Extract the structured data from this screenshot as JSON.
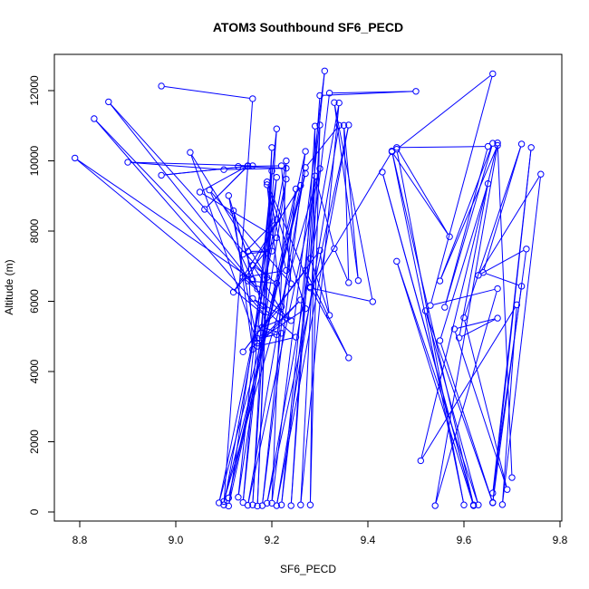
{
  "chart_data": {
    "type": "line",
    "title": "ATOM3 Southbound SF6_PECD",
    "xlabel": "SF6_PECD",
    "ylabel": "Altitude (m)",
    "xlim": [
      8.8,
      9.8
    ],
    "ylim": [
      0,
      12000
    ],
    "xticks": [
      8.8,
      9.0,
      9.2,
      9.4,
      9.6,
      9.8
    ],
    "yticks": [
      0,
      2000,
      4000,
      6000,
      8000,
      10000,
      12000
    ],
    "grid": false,
    "markers": "open-circle",
    "color": "#0000ff",
    "series": [
      {
        "name": "",
        "points": [
          [
            8.97,
            12130
          ],
          [
            9.16,
            11770
          ],
          [
            9.1,
            200
          ],
          [
            9.23,
            10000
          ],
          [
            9.2,
            250
          ],
          [
            9.31,
            12560
          ],
          [
            9.22,
            200
          ],
          [
            9.32,
            11930
          ],
          [
            9.5,
            11980
          ],
          [
            9.3,
            11860
          ],
          [
            9.24,
            180
          ],
          [
            9.29,
            10990
          ],
          [
            9.28,
            200
          ],
          [
            9.3,
            11020
          ],
          [
            9.26,
            200
          ],
          [
            9.34,
            11650
          ],
          [
            9.19,
            250
          ],
          [
            9.36,
            11020
          ],
          [
            9.21,
            180
          ],
          [
            9.34,
            11010
          ],
          [
            9.27,
            9810
          ],
          [
            9.15,
            190
          ],
          [
            9.3,
            9780
          ],
          [
            9.1,
            300
          ],
          [
            9.27,
            9640
          ],
          [
            9.09,
            260
          ],
          [
            9.23,
            9480
          ],
          [
            9.13,
            420
          ],
          [
            9.21,
            10910
          ],
          [
            9.16,
            200
          ],
          [
            9.2,
            10380
          ],
          [
            9.17,
            170
          ],
          [
            9.2,
            9710
          ],
          [
            9.14,
            270
          ],
          [
            9.21,
            9530
          ],
          [
            9.11,
            170
          ],
          [
            9.27,
            10270
          ],
          [
            9.18,
            180
          ],
          [
            9.25,
            9200
          ],
          [
            9.11,
            400
          ],
          [
            9.26,
            9300
          ],
          [
            9.12,
            6260
          ],
          [
            9.21,
            7810
          ],
          [
            9.05,
            9110
          ],
          [
            9.15,
            9860
          ],
          [
            9.06,
            8620
          ],
          [
            9.15,
            9850
          ],
          [
            8.97,
            9590
          ],
          [
            9.16,
            9860
          ],
          [
            8.9,
            9960
          ],
          [
            9.1,
            9750
          ],
          [
            9.23,
            9790
          ],
          [
            9.13,
            9840
          ],
          [
            9.22,
            9860
          ],
          [
            9.24,
            6500
          ],
          [
            9.07,
            9170
          ],
          [
            9.16,
            6610
          ],
          [
            8.79,
            10080
          ],
          [
            9.19,
            5540
          ],
          [
            8.83,
            11200
          ],
          [
            9.17,
            6350
          ],
          [
            8.86,
            11680
          ],
          [
            9.19,
            6680
          ],
          [
            9.03,
            10240
          ],
          [
            9.17,
            4810
          ],
          [
            9.11,
            9010
          ],
          [
            9.18,
            5880
          ],
          [
            9.12,
            8580
          ],
          [
            9.16,
            4630
          ],
          [
            9.15,
            7420
          ],
          [
            9.2,
            7430
          ],
          [
            9.14,
            7340
          ],
          [
            9.21,
            8330
          ],
          [
            9.15,
            6580
          ],
          [
            9.21,
            6510
          ],
          [
            9.16,
            7030
          ],
          [
            9.23,
            5530
          ],
          [
            9.17,
            5210
          ],
          [
            9.21,
            5050
          ],
          [
            9.17,
            4940
          ],
          [
            9.22,
            5090
          ],
          [
            9.18,
            5260
          ],
          [
            9.22,
            5850
          ],
          [
            9.19,
            9320
          ],
          [
            9.23,
            6880
          ],
          [
            9.14,
            6680
          ],
          [
            9.24,
            5450
          ],
          [
            9.16,
            6080
          ],
          [
            9.25,
            4980
          ],
          [
            9.17,
            4720
          ],
          [
            9.26,
            6040
          ],
          [
            9.18,
            4960
          ],
          [
            9.27,
            5790
          ],
          [
            9.19,
            9400
          ],
          [
            9.28,
            6410
          ],
          [
            9.36,
            4390
          ],
          [
            9.27,
            6880
          ],
          [
            9.14,
            4560
          ],
          [
            9.3,
            7450
          ],
          [
            9.32,
            5600
          ],
          [
            9.28,
            7220
          ],
          [
            9.29,
            9570
          ],
          [
            9.33,
            7500
          ],
          [
            9.36,
            6530
          ],
          [
            9.35,
            11010
          ],
          [
            9.38,
            6590
          ],
          [
            9.33,
            11660
          ],
          [
            9.41,
            5990
          ],
          [
            9.28,
            6380
          ],
          [
            9.45,
            10260
          ],
          [
            9.57,
            7840
          ],
          [
            9.46,
            10380
          ],
          [
            9.65,
            10410
          ],
          [
            9.56,
            5830
          ],
          [
            9.66,
            10500
          ],
          [
            9.55,
            6580
          ],
          [
            9.67,
            10440
          ],
          [
            9.54,
            180
          ],
          [
            9.67,
            6360
          ],
          [
            9.53,
            5880
          ],
          [
            9.66,
            12480
          ],
          [
            9.46,
            10330
          ],
          [
            9.6,
            200
          ],
          [
            9.45,
            10280
          ],
          [
            9.62,
            200
          ],
          [
            9.43,
            9680
          ],
          [
            9.62,
            180
          ],
          [
            9.46,
            7140
          ],
          [
            9.63,
            200
          ],
          [
            9.52,
            5730
          ],
          [
            9.66,
            260
          ],
          [
            9.55,
            4880
          ],
          [
            9.65,
            9350
          ],
          [
            9.59,
            4960
          ],
          [
            9.67,
            5520
          ],
          [
            9.58,
            5210
          ],
          [
            9.69,
            640
          ],
          [
            9.6,
            5530
          ],
          [
            9.72,
            10480
          ],
          [
            9.64,
            6820
          ],
          [
            9.72,
            6430
          ],
          [
            9.66,
            540
          ],
          [
            9.74,
            10380
          ],
          [
            9.66,
            270
          ],
          [
            9.73,
            7490
          ],
          [
            9.63,
            6740
          ],
          [
            9.76,
            9620
          ],
          [
            9.68,
            210
          ],
          [
            9.71,
            5900
          ],
          [
            9.51,
            1460
          ],
          [
            9.67,
            10510
          ],
          [
            9.7,
            980
          ]
        ]
      }
    ]
  }
}
